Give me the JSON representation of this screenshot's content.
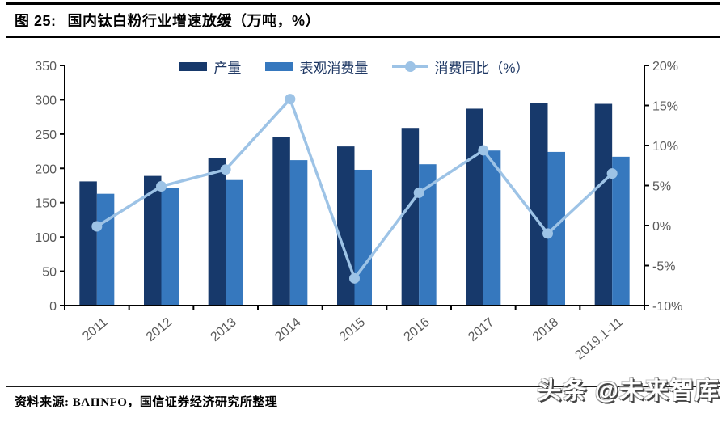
{
  "header": {
    "figure_label": "图 25:",
    "title": "国内钛白粉行业增速放缓（万吨，%）"
  },
  "chart_data": {
    "type": "bar",
    "subtype": "grouped-bars-with-line-overlay",
    "title": "国内钛白粉行业增速放缓（万吨，%）",
    "categories": [
      "2011",
      "2012",
      "2013",
      "2014",
      "2015",
      "2016",
      "2017",
      "2018",
      "2019.1-11"
    ],
    "series": [
      {
        "name": "产量",
        "type": "bar",
        "axis": "left",
        "color": "#17396B",
        "values": [
          181,
          189,
          215,
          246,
          232,
          259,
          287,
          295,
          294
        ]
      },
      {
        "name": "表观消费量",
        "type": "bar",
        "axis": "left",
        "color": "#3678BE",
        "values": [
          163,
          171,
          183,
          212,
          198,
          206,
          226,
          224,
          217
        ]
      },
      {
        "name": "消费同比（%）",
        "type": "line",
        "axis": "right",
        "color": "#9DC3E6",
        "values": [
          -0.1,
          4.9,
          7.0,
          15.8,
          -6.6,
          4.1,
          9.4,
          -1.0,
          6.5
        ]
      }
    ],
    "left_axis": {
      "min": 0,
      "max": 350,
      "step": 50
    },
    "right_axis": {
      "min": -10,
      "max": 20,
      "step": 5,
      "suffix": "%"
    },
    "legend_position": "top",
    "grid": false,
    "axis_text_color": "#595959",
    "axis_line_color": "#000000",
    "legend_text_color": "#1F3864"
  },
  "footer": {
    "source": "资料来源: BAIINFO，国信证券经济研究所整理",
    "watermark": "头条 @未来智库"
  }
}
